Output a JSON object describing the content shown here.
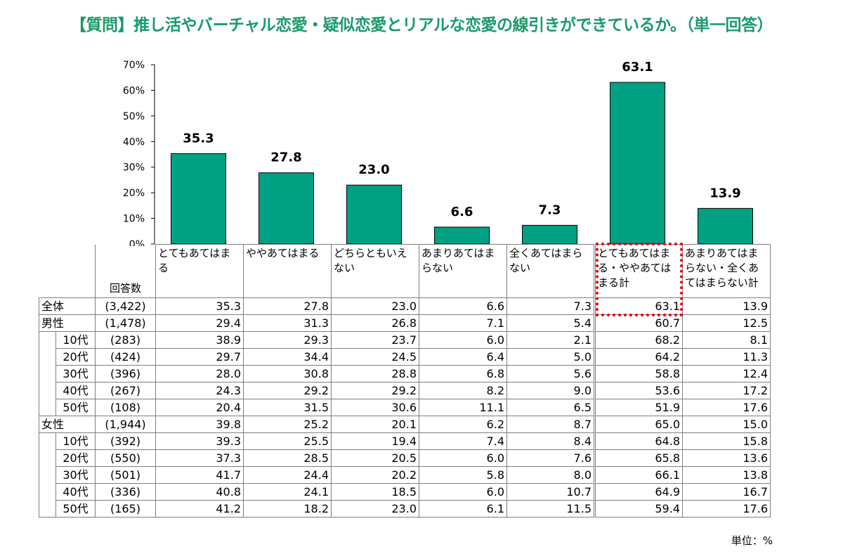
{
  "title": "【質問】推し活やバーチャル恋愛・疑似恋愛とリアルな恋愛の線引きができているか。（単一回答）",
  "unit_label": "単位：%",
  "n_header": "回答数",
  "colors": {
    "bar": "#00a083",
    "title": "#1a9a6b",
    "highlight": "#e8000b"
  },
  "chart_data": {
    "type": "bar",
    "categories": [
      "とてもあてはまる",
      "ややあてはまる",
      "どちらともいえない",
      "あまりあてはまらない",
      "全くあてはまらない",
      "とてもあてはまる・ややあてはまる計",
      "あまりあてはまらない・全くあてはまらない計"
    ],
    "values": [
      35.3,
      27.8,
      23.0,
      6.6,
      7.3,
      63.1,
      13.9
    ],
    "value_labels": [
      "35.3",
      "27.8",
      "23.0",
      "6.6",
      "7.3",
      "63.1",
      "13.9"
    ],
    "ylim": [
      0,
      70
    ],
    "yticks": [
      "0%",
      "10%",
      "20%",
      "30%",
      "40%",
      "50%",
      "60%",
      "70%"
    ],
    "grid": false
  },
  "table": {
    "rows": [
      {
        "group": "全体",
        "label": "",
        "n": "(3,422)",
        "values": [
          "35.3",
          "27.8",
          "23.0",
          "6.6",
          "7.3",
          "63.1",
          "13.9"
        ]
      },
      {
        "group": "男性",
        "label": "",
        "n": "(1,478)",
        "values": [
          "29.4",
          "31.3",
          "26.8",
          "7.1",
          "5.4",
          "60.7",
          "12.5"
        ]
      },
      {
        "group": "",
        "label": "10代",
        "n": "(283)",
        "values": [
          "38.9",
          "29.3",
          "23.7",
          "6.0",
          "2.1",
          "68.2",
          "8.1"
        ]
      },
      {
        "group": "",
        "label": "20代",
        "n": "(424)",
        "values": [
          "29.7",
          "34.4",
          "24.5",
          "6.4",
          "5.0",
          "64.2",
          "11.3"
        ]
      },
      {
        "group": "",
        "label": "30代",
        "n": "(396)",
        "values": [
          "28.0",
          "30.8",
          "28.8",
          "6.8",
          "5.6",
          "58.8",
          "12.4"
        ]
      },
      {
        "group": "",
        "label": "40代",
        "n": "(267)",
        "values": [
          "24.3",
          "29.2",
          "29.2",
          "8.2",
          "9.0",
          "53.6",
          "17.2"
        ]
      },
      {
        "group": "",
        "label": "50代",
        "n": "(108)",
        "values": [
          "20.4",
          "31.5",
          "30.6",
          "11.1",
          "6.5",
          "51.9",
          "17.6"
        ]
      },
      {
        "group": "女性",
        "label": "",
        "n": "(1,944)",
        "values": [
          "39.8",
          "25.2",
          "20.1",
          "6.2",
          "8.7",
          "65.0",
          "15.0"
        ]
      },
      {
        "group": "",
        "label": "10代",
        "n": "(392)",
        "values": [
          "39.3",
          "25.5",
          "19.4",
          "7.4",
          "8.4",
          "64.8",
          "15.8"
        ]
      },
      {
        "group": "",
        "label": "20代",
        "n": "(550)",
        "values": [
          "37.3",
          "28.5",
          "20.5",
          "6.0",
          "7.6",
          "65.8",
          "13.6"
        ]
      },
      {
        "group": "",
        "label": "30代",
        "n": "(501)",
        "values": [
          "41.7",
          "24.4",
          "20.2",
          "5.8",
          "8.0",
          "66.1",
          "13.8"
        ]
      },
      {
        "group": "",
        "label": "40代",
        "n": "(336)",
        "values": [
          "40.8",
          "24.1",
          "18.5",
          "6.0",
          "10.7",
          "64.9",
          "16.7"
        ]
      },
      {
        "group": "",
        "label": "50代",
        "n": "(165)",
        "values": [
          "41.2",
          "18.2",
          "23.0",
          "6.1",
          "11.5",
          "59.4",
          "17.6"
        ]
      }
    ]
  }
}
